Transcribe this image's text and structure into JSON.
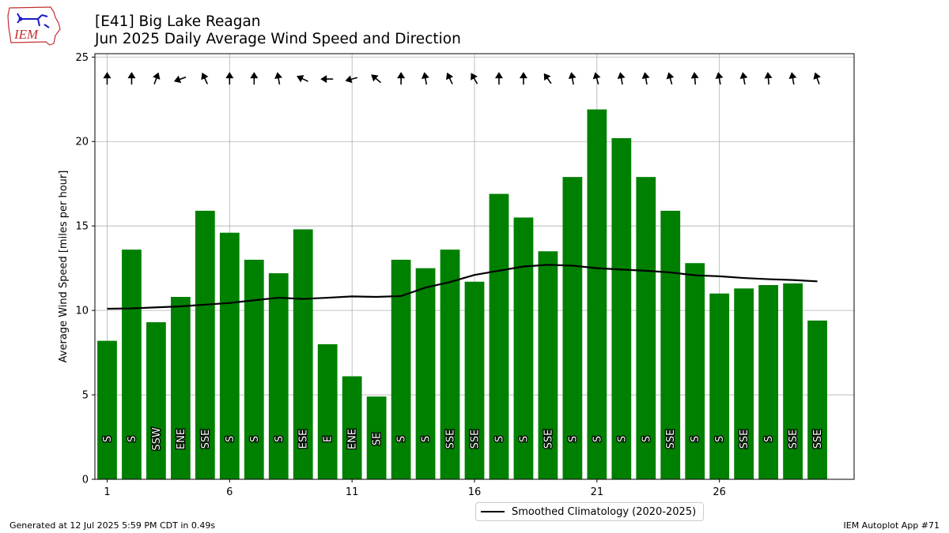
{
  "header": {
    "title_line1": "[E41] Big Lake Reagan",
    "title_line2": "Jun 2025 Daily Average Wind Speed and Direction",
    "logo_text": "IEM"
  },
  "footer": {
    "generated": "Generated at 12 Jul 2025 5:59 PM CDT in 0.49s",
    "app": "IEM Autoplot App #71"
  },
  "legend": {
    "label": "Smoothed Climatology (2020-2025)",
    "location": "lower-center outside plot"
  },
  "colors": {
    "bar": "#008000",
    "clim_line": "#000000",
    "arrow": "#000000",
    "grid": "#b0b0b0"
  },
  "chart_data": {
    "type": "bar",
    "title": "[E41] Big Lake Reagan",
    "subtitle": "Jun 2025 Daily Average Wind Speed and Direction",
    "xlabel": "",
    "ylabel": "Average Wind Speed [miles per hour]",
    "xlim": [
      0.5,
      31.5
    ],
    "ylim": [
      0,
      25.2
    ],
    "xticks": [
      1,
      6,
      11,
      16,
      21,
      26
    ],
    "yticks": [
      0,
      5,
      10,
      15,
      20,
      25
    ],
    "grid": true,
    "days": [
      1,
      2,
      3,
      4,
      5,
      6,
      7,
      8,
      9,
      10,
      11,
      12,
      13,
      14,
      15,
      16,
      17,
      18,
      19,
      20,
      21,
      22,
      23,
      24,
      25,
      26,
      27,
      28,
      29,
      30
    ],
    "values": [
      8.2,
      13.6,
      9.3,
      10.8,
      15.9,
      14.6,
      13.0,
      12.2,
      14.8,
      8.0,
      6.1,
      4.9,
      13.0,
      12.5,
      13.6,
      11.7,
      16.9,
      15.5,
      13.5,
      17.9,
      21.9,
      20.2,
      17.9,
      15.9,
      12.8,
      11.0,
      11.3,
      11.5,
      11.6,
      9.4
    ],
    "direction_labels": [
      "S",
      "S",
      "SSW",
      "ENE",
      "SSE",
      "S",
      "S",
      "S",
      "ESE",
      "E",
      "ENE",
      "SE",
      "S",
      "S",
      "SSE",
      "SSE",
      "S",
      "S",
      "SSE",
      "S",
      "S",
      "S",
      "S",
      "SSE",
      "S",
      "S",
      "SSE",
      "S",
      "SSE",
      "SSE"
    ],
    "direction_degrees": [
      180,
      180,
      200,
      70,
      155,
      180,
      180,
      170,
      115,
      90,
      75,
      130,
      180,
      170,
      155,
      150,
      180,
      180,
      145,
      170,
      165,
      170,
      170,
      165,
      175,
      170,
      170,
      175,
      170,
      160
    ],
    "series": [
      {
        "name": "Smoothed Climatology (2020-2025)",
        "type": "line",
        "values": [
          10.1,
          10.12,
          10.18,
          10.24,
          10.34,
          10.44,
          10.6,
          10.75,
          10.68,
          10.75,
          10.83,
          10.8,
          10.85,
          11.35,
          11.68,
          12.1,
          12.35,
          12.6,
          12.7,
          12.65,
          12.5,
          12.42,
          12.35,
          12.25,
          12.08,
          12.02,
          11.92,
          11.85,
          11.8,
          11.72
        ]
      }
    ]
  }
}
